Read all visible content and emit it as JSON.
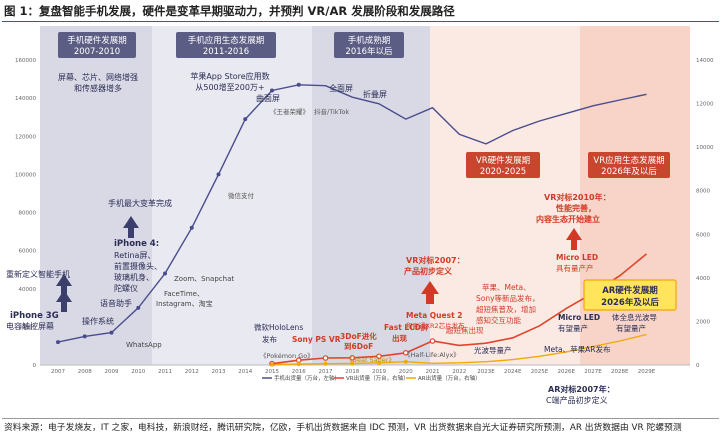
{
  "title": "图 1：复盘智能手机发展，硬件是变革早期驱动力，并预判 VR/AR 发展阶段和发展路径",
  "source": "资料来源：电子发烧友，IT 之家，电科技，新浪财经，腾讯研究院，亿欧，手机出货数据来自 IDC 预测，VR 出货数据来自光大证券研究所预测，AR 出货数据由 VR 陀螺预测",
  "colors": {
    "phone_line": "#4a4d8c",
    "vr_line": "#e0452a",
    "ar_line": "#f3a900",
    "phase_dark_bg": "#5b5d84",
    "phase_red_bg": "#c8452e",
    "arrow_dark": "#3c3f6b",
    "arrow_red": "#d23a25",
    "highlight_box": "#ffe45c"
  },
  "chart_data": {
    "type": "line",
    "x": [
      "2007",
      "2008",
      "2009",
      "2010",
      "2011",
      "2012",
      "2013",
      "2014",
      "2015",
      "2016",
      "2017",
      "2018",
      "2019",
      "2020",
      "2021",
      "2022",
      "2023E",
      "2024E",
      "2025E",
      "2026E",
      "2027E",
      "2028E",
      "2029E"
    ],
    "left_axis_ticks": [
      "0",
      "20000",
      "40000",
      "60000",
      "80000",
      "100000",
      "120000",
      "140000",
      "160000"
    ],
    "right_axis_ticks": [
      "0",
      "2000",
      "4000",
      "6000",
      "8000",
      "10000",
      "12000",
      "14000"
    ],
    "ylim_left": [
      0,
      160000
    ],
    "ylim_right": [
      0,
      14000
    ],
    "series": [
      {
        "name": "手机出货量（万台，左轴）",
        "axis": "left",
        "color": "#4a4d8c",
        "values": [
          12000,
          15000,
          17000,
          30000,
          48000,
          72000,
          100000,
          129000,
          144000,
          147000,
          146500,
          140500,
          137000,
          129000,
          135000,
          121000,
          116000,
          123000,
          128000,
          132000,
          136000,
          139000,
          142000
        ]
      },
      {
        "name": "VR出货量（万台，右轴）",
        "axis": "right",
        "color": "#e0452a",
        "values": [
          null,
          null,
          null,
          null,
          null,
          null,
          null,
          null,
          60,
          220,
          320,
          330,
          400,
          560,
          1100,
          900,
          1000,
          1250,
          1800,
          2600,
          3300,
          4100,
          5100
        ]
      },
      {
        "name": "AR出货量（万台，右轴）",
        "axis": "right",
        "color": "#f3a900",
        "values": [
          null,
          null,
          null,
          null,
          null,
          null,
          null,
          null,
          20,
          40,
          60,
          70,
          100,
          150,
          80,
          100,
          150,
          250,
          400,
          600,
          850,
          1100,
          1400
        ]
      }
    ],
    "legend": [
      "手机出货量（万台，左轴）",
      "VR出货量（万台，右轴）",
      "AR出货量（万台，右轴）"
    ],
    "legend_position": "bottom"
  },
  "phases": [
    {
      "id": "p1",
      "lines": [
        "手机硬件发展期",
        "2007-2010"
      ]
    },
    {
      "id": "p2",
      "lines": [
        "手机应用生态发展期",
        "2011-2016"
      ]
    },
    {
      "id": "p3",
      "lines": [
        "手机成熟期",
        "2016年以后"
      ]
    },
    {
      "id": "p4",
      "lines": [
        "VR硬件发展期",
        "2020-2025"
      ]
    },
    {
      "id": "p5",
      "lines": [
        "VR应用生态发展期",
        "2026年及以后"
      ]
    }
  ],
  "annotations": {
    "a_screen": [
      "屏幕、芯片、网络增强",
      "和传感器增多"
    ],
    "a_appstore": [
      "苹果App Store应用数",
      "从500增至200万+"
    ],
    "a_curved": "曲面屏",
    "a_kings": "《王者荣耀》",
    "a_fullscreen": "全面屏",
    "a_fold": "折叠屏",
    "a_tiktok": "抖音/TikTok",
    "a_wechatpay": "微信支付",
    "a_biggest": "手机最大变革完成",
    "a_iphone4": [
      "iPhone 4:",
      "Retina屏、",
      "前置摄像头、",
      "玻璃机身、",
      "陀螺仪"
    ],
    "a_redefine": "重新定义智能手机",
    "a_iphone3": [
      "iPhone 3G",
      "电容触控屏幕"
    ],
    "a_assistant": "语音助手",
    "a_os": "操作系统",
    "a_zoom": "Zoom、Snapchat",
    "a_facetime": [
      "FaceTime、",
      "Instagram、淘宝"
    ],
    "a_whatsapp": "WhatsApp",
    "a_hololens": [
      "微软HoloLens",
      "发布"
    ],
    "a_psvr": "Sony PS VR",
    "a_psvr2": "发布",
    "a_3dof": [
      "3DoF进化",
      "到6DoF"
    ],
    "a_beatsaber": "《Beat Saber》",
    "a_pokemon": "《Pokémon Go》",
    "a_fastlcd": [
      "Fast LCD屏",
      "出现"
    ],
    "a_halflife": "《Half-Life:Alyx》",
    "a_vr2007": [
      "VR对标2007：",
      "产品初步定义"
    ],
    "a_quest2": "Meta Quest 2",
    "a_pico": "和高通XR2芯片发布",
    "a_pancake": "超短焦出现",
    "a_sony": [
      "苹果、Meta、",
      "Sony等新品发布，",
      "超短焦普及，增加",
      "感知交互功能"
    ],
    "a_waveguide": "光波导量产",
    "a_vr2010": [
      "VR对标2010年：",
      "性能完善，",
      "内容生态开始建立"
    ],
    "a_microled1": [
      "Micro LED",
      "具有量产产"
    ],
    "a_microled2": [
      "Micro LED",
      "有望量产"
    ],
    "a_waveguide2": [
      "体全息光波导",
      "有望量产"
    ],
    "a_ar_phase": [
      "AR硬件发展期",
      "2026年及以后"
    ],
    "a_meta_ar": "Meta、苹果AR发布",
    "a_ar2007": [
      "AR对标2007年：",
      "C端产品初步定义"
    ]
  }
}
